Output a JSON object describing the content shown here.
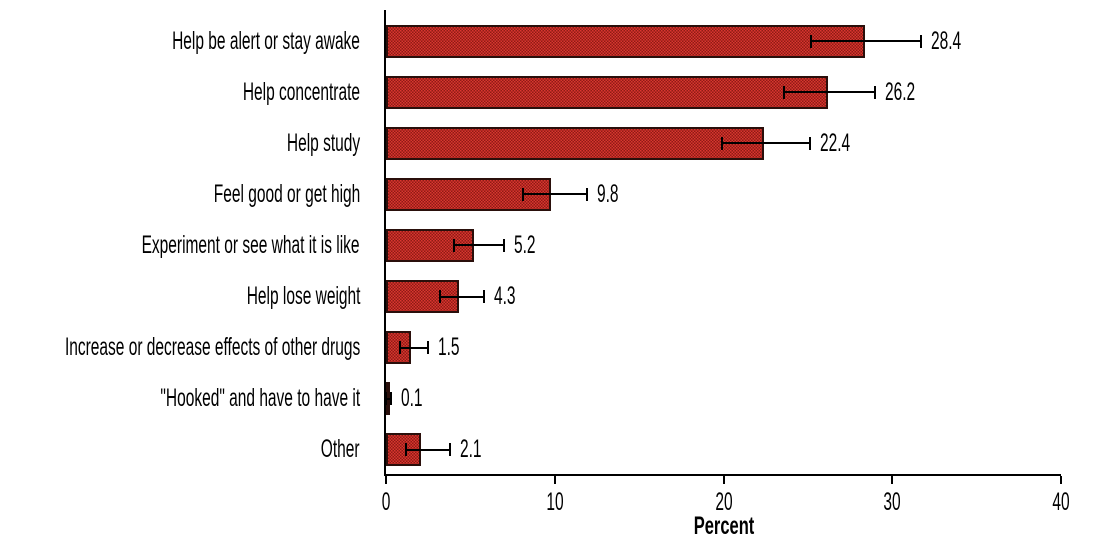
{
  "figure": {
    "background": "#ffffff"
  },
  "chart_data": {
    "type": "bar",
    "orientation": "horizontal",
    "title": "",
    "xlabel": "Percent",
    "ylabel": "",
    "xlim": [
      0,
      40
    ],
    "xticks": [
      "0",
      "10",
      "20",
      "30",
      "40"
    ],
    "xtick_values": [
      0,
      10,
      20,
      30,
      40
    ],
    "grid": false,
    "legend": false,
    "categories": [
      "Help be alert or stay awake",
      "Help concentrate",
      "Help study",
      "Feel good or get high",
      "Experiment or see what it is like",
      "Help lose weight",
      "Increase or decrease effects of other drugs",
      "\"Hooked\" and have to have it",
      "Other"
    ],
    "values": [
      28.4,
      26.2,
      22.4,
      9.8,
      5.2,
      4.3,
      1.5,
      0.1,
      2.1
    ],
    "value_labels": [
      "28.4",
      "26.2",
      "22.4",
      "9.8",
      "5.2",
      "4.3",
      "1.5",
      "0.1",
      "2.1"
    ],
    "error_low": [
      25.2,
      23.6,
      19.9,
      8.1,
      4.0,
      3.2,
      0.8,
      0.0,
      1.2
    ],
    "error_high": [
      31.7,
      29.0,
      25.1,
      11.9,
      7.0,
      5.8,
      2.5,
      0.3,
      3.8
    ],
    "colors": {
      "bar_fill": "#d93630",
      "bar_fill_dot": "#8e1b14",
      "bar_border": "#2a0f0b",
      "axis": "#000000",
      "error_bar": "#000000",
      "text": "#000000"
    }
  }
}
